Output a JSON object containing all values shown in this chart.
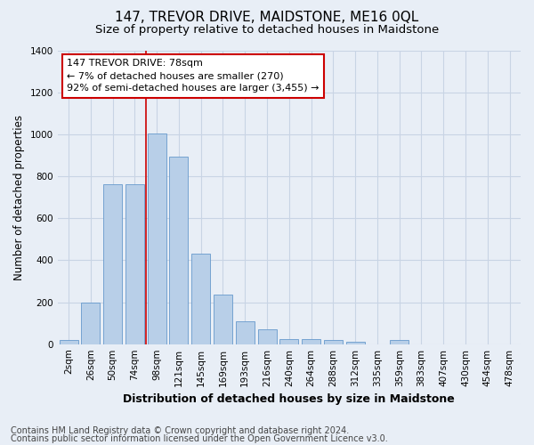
{
  "title": "147, TREVOR DRIVE, MAIDSTONE, ME16 0QL",
  "subtitle": "Size of property relative to detached houses in Maidstone",
  "xlabel": "Distribution of detached houses by size in Maidstone",
  "ylabel": "Number of detached properties",
  "categories": [
    "2sqm",
    "26sqm",
    "50sqm",
    "74sqm",
    "98sqm",
    "121sqm",
    "145sqm",
    "169sqm",
    "193sqm",
    "216sqm",
    "240sqm",
    "264sqm",
    "288sqm",
    "312sqm",
    "335sqm",
    "359sqm",
    "383sqm",
    "407sqm",
    "430sqm",
    "454sqm",
    "478sqm"
  ],
  "values": [
    20,
    200,
    760,
    760,
    1005,
    895,
    430,
    235,
    110,
    70,
    25,
    25,
    18,
    10,
    0,
    20,
    0,
    0,
    0,
    0,
    0
  ],
  "bar_color": "#b8cfe8",
  "bar_edge_color": "#6699cc",
  "grid_color": "#c8d4e4",
  "bg_color": "#e8eef6",
  "vline_x_index": 3,
  "vline_color": "#cc0000",
  "annotation_text": "147 TREVOR DRIVE: 78sqm\n← 7% of detached houses are smaller (270)\n92% of semi-detached houses are larger (3,455) →",
  "annotation_box_color": "#ffffff",
  "annotation_box_edge": "#cc0000",
  "ylim": [
    0,
    1400
  ],
  "yticks": [
    0,
    200,
    400,
    600,
    800,
    1000,
    1200,
    1400
  ],
  "footer1": "Contains HM Land Registry data © Crown copyright and database right 2024.",
  "footer2": "Contains public sector information licensed under the Open Government Licence v3.0.",
  "title_fontsize": 11,
  "subtitle_fontsize": 9.5,
  "footer_fontsize": 7,
  "ylabel_fontsize": 8.5,
  "xlabel_fontsize": 9,
  "tick_fontsize": 7.5,
  "annotation_fontsize": 8
}
